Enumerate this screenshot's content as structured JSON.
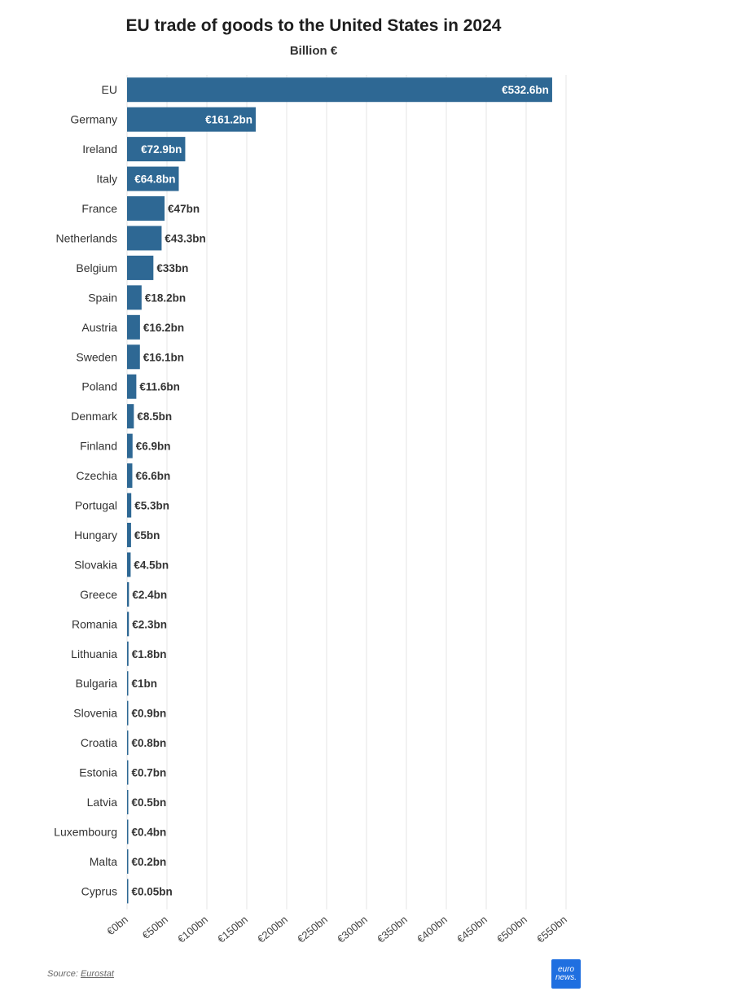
{
  "header": {
    "title": "EU trade of goods to the United States in 2024",
    "subtitle": "Billion €"
  },
  "footer": {
    "source_prefix": "Source: ",
    "source_name": "Eurostat",
    "logo_text_top": "euro",
    "logo_text_bottom": "news."
  },
  "colors": {
    "bar": "#2e6894",
    "grid": "#e6e6e6",
    "label_inside": "#ffffff",
    "label_outside": "#333333"
  },
  "chart_data": {
    "type": "bar",
    "orientation": "horizontal",
    "title": "EU trade of goods to the United States in 2024",
    "subtitle": "Billion €",
    "categories": [
      "EU",
      "Germany",
      "Ireland",
      "Italy",
      "France",
      "Netherlands",
      "Belgium",
      "Spain",
      "Austria",
      "Sweden",
      "Poland",
      "Denmark",
      "Finland",
      "Czechia",
      "Portugal",
      "Hungary",
      "Slovakia",
      "Greece",
      "Romania",
      "Lithuania",
      "Bulgaria",
      "Slovenia",
      "Croatia",
      "Estonia",
      "Latvia",
      "Luxembourg",
      "Malta",
      "Cyprus"
    ],
    "values": [
      532.6,
      161.2,
      72.9,
      64.8,
      47,
      43.3,
      33,
      18.2,
      16.2,
      16.1,
      11.6,
      8.5,
      6.9,
      6.6,
      5.3,
      5,
      4.5,
      2.4,
      2.3,
      1.8,
      1,
      0.9,
      0.8,
      0.7,
      0.5,
      0.4,
      0.2,
      0.05
    ],
    "data_labels": [
      "€532.6bn",
      "€161.2bn",
      "€72.9bn",
      "€64.8bn",
      "€47bn",
      "€43.3bn",
      "€33bn",
      "€18.2bn",
      "€16.2bn",
      "€16.1bn",
      "€11.6bn",
      "€8.5bn",
      "€6.9bn",
      "€6.6bn",
      "€5.3bn",
      "€5bn",
      "€4.5bn",
      "€2.4bn",
      "€2.3bn",
      "€1.8bn",
      "€1bn",
      "€0.9bn",
      "€0.8bn",
      "€0.7bn",
      "€0.5bn",
      "€0.4bn",
      "€0.2bn",
      "€0.05bn"
    ],
    "inside_label_count": 4,
    "xlim": [
      0,
      550
    ],
    "xticks": [
      0,
      50,
      100,
      150,
      200,
      250,
      300,
      350,
      400,
      450,
      500,
      550
    ],
    "xtick_labels": [
      "€0bn",
      "€50bn",
      "€100bn",
      "€150bn",
      "€200bn",
      "€250bn",
      "€300bn",
      "€350bn",
      "€400bn",
      "€450bn",
      "€500bn",
      "€550bn"
    ],
    "grid": true
  }
}
